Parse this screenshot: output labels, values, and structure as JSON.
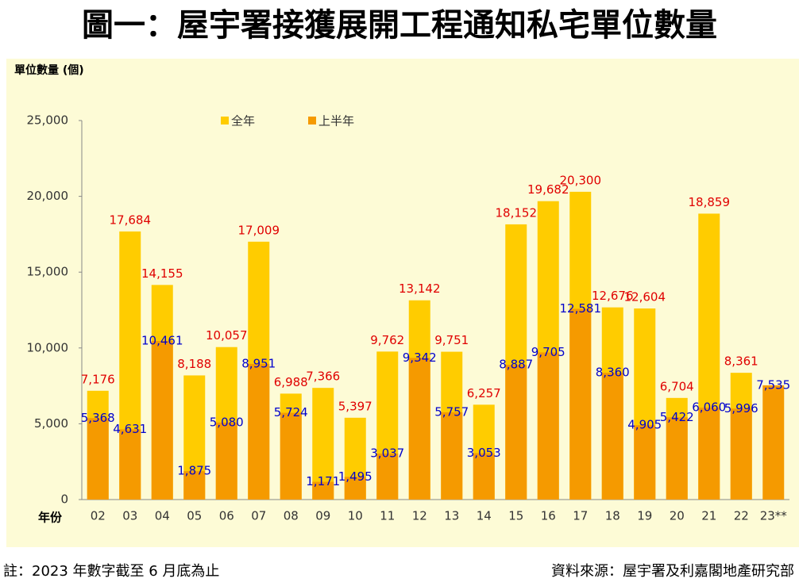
{
  "chart_data": {
    "type": "overlap_bar",
    "title": "圖一：屋宇署接獲展開工程通知私宅單位數量",
    "y_label": "單位數量 (個)",
    "x_label": "年份",
    "categories": [
      "02",
      "03",
      "04",
      "05",
      "06",
      "07",
      "08",
      "09",
      "10",
      "11",
      "12",
      "13",
      "14",
      "15",
      "16",
      "17",
      "18",
      "19",
      "20",
      "21",
      "22",
      "23**"
    ],
    "series": [
      {
        "name": "全年",
        "color": "#ffcc00",
        "label_color": "#e00000",
        "values": [
          7176,
          17684,
          14155,
          8188,
          10057,
          17009,
          6988,
          7366,
          5397,
          9762,
          13142,
          9751,
          6257,
          18152,
          19682,
          20300,
          12676,
          12604,
          6704,
          18859,
          8361,
          null
        ],
        "value_labels": [
          "7,176",
          "17,684",
          "14,155",
          "8,188",
          "10,057",
          "17,009",
          "6,988",
          "7,366",
          "5,397",
          "9,762",
          "13,142",
          "9,751",
          "6,257",
          "18,152",
          "19,682",
          "20,300",
          "12,676",
          "12,604",
          "6,704",
          "18,859",
          "8,361",
          null
        ]
      },
      {
        "name": "上半年",
        "color": "#f59a00",
        "label_color": "#0000cc",
        "values": [
          5368,
          4631,
          10461,
          1875,
          5080,
          8951,
          5724,
          1171,
          1495,
          3037,
          9342,
          5757,
          3053,
          8887,
          9705,
          12581,
          8360,
          4905,
          5422,
          6060,
          5996,
          7535
        ],
        "value_labels": [
          "5,368",
          "4,631",
          "10,461",
          "1,875",
          "5,080",
          "8,951",
          "5,724",
          "1,171",
          "1,495",
          "3,037",
          "9,342",
          "5,757",
          "3,053",
          "8,887",
          "9,705",
          "12,581",
          "8,360",
          "4,905",
          "5,422",
          "6,060",
          "5,996",
          "7,535"
        ]
      }
    ],
    "ylim": [
      0,
      25000
    ],
    "yticks": [
      0,
      {
        "value": 5000,
        "label": "5,000"
      },
      {
        "value": 10000,
        "label": "10,000"
      },
      {
        "value": 15000,
        "label": "15,000"
      },
      {
        "value": 20000,
        "label": "20,000"
      },
      {
        "value": 25000,
        "label": "25,000"
      }
    ],
    "legend": "top-left"
  },
  "note": "註：2023 年數字截至 6 月底為止",
  "source": "資料來源：屋宇署及利嘉閣地產研究部"
}
